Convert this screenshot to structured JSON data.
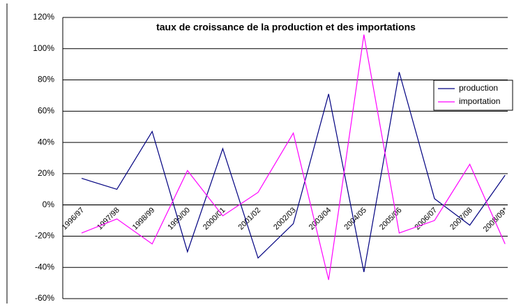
{
  "chart_data": {
    "type": "line",
    "title": "taux de croissance de la production et des importations",
    "categories": [
      "1996/97",
      "1997/98",
      "1998/99",
      "1999/00",
      "2000/01",
      "2001/02",
      "2002/03",
      "2003/04",
      "2004/05",
      "2005/06",
      "2006/07",
      "2007/08",
      "2008/09*"
    ],
    "series": [
      {
        "name": "production",
        "color": "#000080",
        "values": [
          17,
          10,
          47,
          -30,
          36,
          -34,
          -12,
          71,
          -43,
          85,
          4,
          -13,
          19
        ]
      },
      {
        "name": "importation",
        "color": "#ff00ff",
        "values": [
          -18,
          -9,
          -25,
          22,
          -7,
          8,
          46,
          -48,
          109,
          -18,
          -10,
          26,
          -25
        ]
      }
    ],
    "ylim": [
      -60,
      120
    ],
    "yticks": [
      {
        "value": -60,
        "label": "-60%"
      },
      {
        "value": -40,
        "label": "-40%"
      },
      {
        "value": -20,
        "label": "-20%"
      },
      {
        "value": 0,
        "label": "0%"
      },
      {
        "value": 20,
        "label": "20%"
      },
      {
        "value": 40,
        "label": "40%"
      },
      {
        "value": 60,
        "label": "60%"
      },
      {
        "value": 80,
        "label": "80%"
      },
      {
        "value": 100,
        "label": "100%"
      },
      {
        "value": 120,
        "label": "120%"
      }
    ],
    "grid": true,
    "legend": "right"
  }
}
